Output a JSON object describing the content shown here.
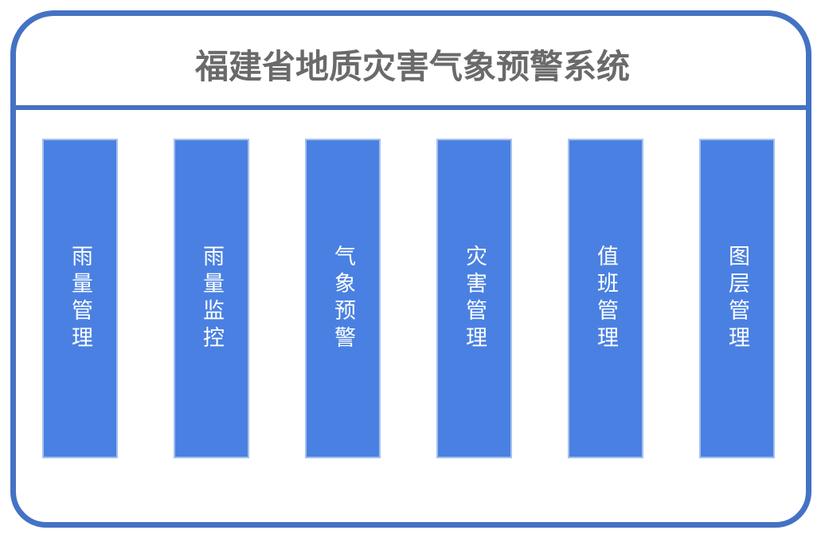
{
  "header": {
    "title": "福建省地质灾害气象预警系统"
  },
  "menu": {
    "items": [
      {
        "label": "雨量管理"
      },
      {
        "label": "雨量监控"
      },
      {
        "label": "气象预警"
      },
      {
        "label": "灾害管理"
      },
      {
        "label": "值班管理"
      },
      {
        "label": "图层管理"
      }
    ]
  },
  "colors": {
    "frame_border": "#4472C4",
    "divider": "#4472C4",
    "bar_fill": "#4A80E1",
    "bar_edge": "#A5C0EF",
    "title_text": "#6A6A6A",
    "bar_text": "#FFFFFF",
    "background": "#FFFFFF"
  }
}
